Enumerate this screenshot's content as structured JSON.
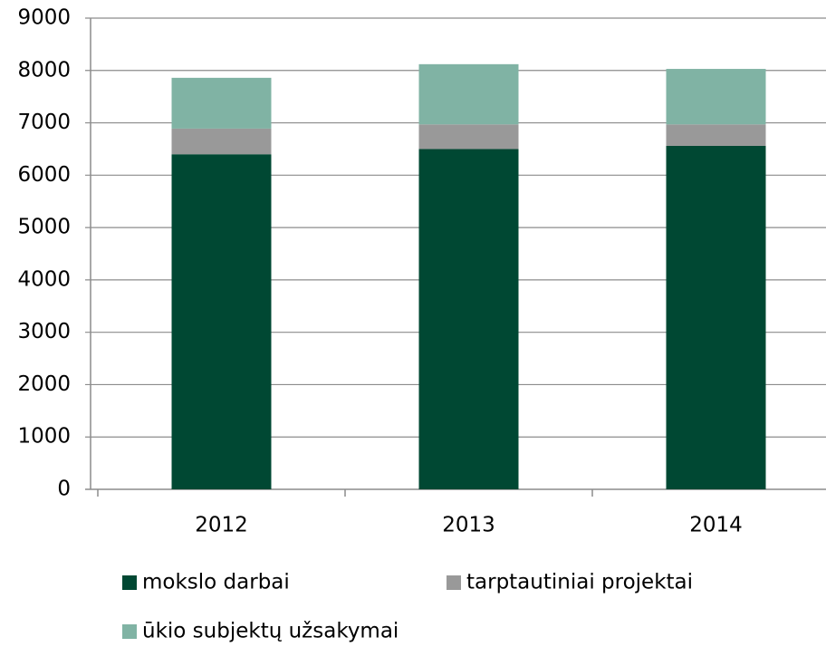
{
  "chart_data": {
    "type": "stacked_bar",
    "categories": [
      "2012",
      "2013",
      "2014"
    ],
    "series": [
      {
        "name": "mokslo darbai",
        "color": "#004833",
        "values": [
          6400,
          6500,
          6560
        ]
      },
      {
        "name": "tarptautiniai projektai",
        "color": "#999999",
        "values": [
          490,
          470,
          410
        ]
      },
      {
        "name": "ūkio subjektų užsakymai",
        "color": "#80b3a4",
        "values": [
          970,
          1150,
          1060
        ]
      }
    ],
    "ylim": [
      0,
      9000
    ],
    "yticks": [
      0,
      1000,
      2000,
      3000,
      4000,
      5000,
      6000,
      7000,
      8000,
      9000
    ],
    "grid": true,
    "legend": "bottom"
  }
}
